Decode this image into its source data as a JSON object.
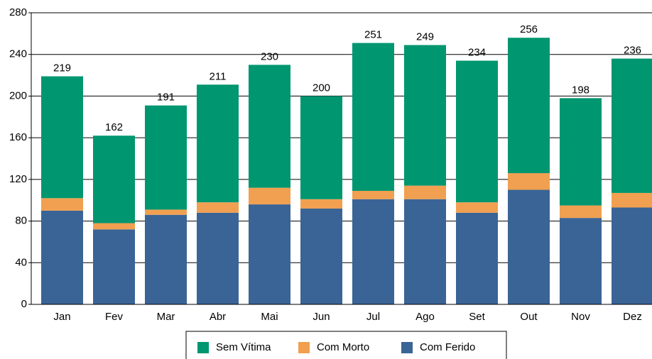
{
  "chart_data": {
    "type": "stacked_bar",
    "categories": [
      "Jan",
      "Fev",
      "Mar",
      "Abr",
      "Mai",
      "Jun",
      "Jul",
      "Ago",
      "Set",
      "Out",
      "Nov",
      "Dez"
    ],
    "series": [
      {
        "name": "Com Ferido",
        "color": "#3a6496",
        "values": [
          90,
          72,
          86,
          88,
          96,
          92,
          101,
          101,
          88,
          110,
          83,
          93
        ]
      },
      {
        "name": "Com Morto",
        "color": "#f0a050",
        "values": [
          12,
          6,
          5,
          10,
          16,
          9,
          8,
          13,
          10,
          16,
          12,
          14
        ]
      },
      {
        "name": "Sem Vítima",
        "color": "#009670",
        "values": [
          117,
          84,
          100,
          113,
          118,
          99,
          142,
          135,
          136,
          130,
          103,
          129
        ]
      }
    ],
    "totals": [
      219,
      162,
      191,
      211,
      230,
      200,
      251,
      249,
      234,
      256,
      198,
      236
    ],
    "ylim": [
      0,
      280
    ],
    "yticks": [
      0,
      40,
      80,
      120,
      160,
      200,
      240,
      280
    ],
    "grid": true
  }
}
